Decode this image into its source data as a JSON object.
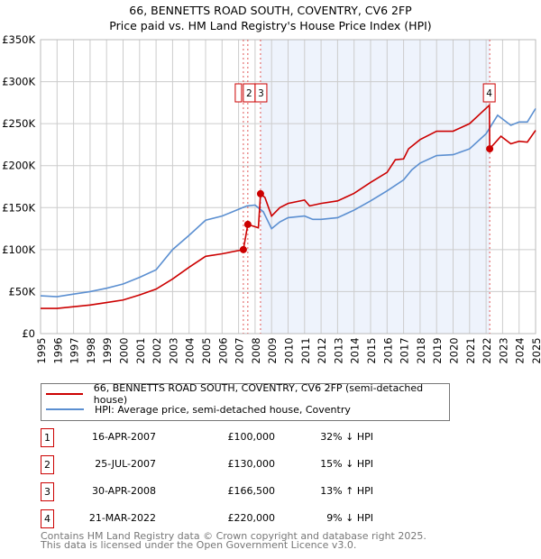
{
  "chart_data": {
    "type": "line",
    "title": "66, BENNETTS ROAD SOUTH, COVENTRY, CV6 2FP",
    "subtitle": "Price paid vs. HM Land Registry's House Price Index (HPI)",
    "xlim": [
      1995,
      2025
    ],
    "ylim": [
      0,
      350000
    ],
    "y_ticks": [
      {
        "v": 0,
        "l": "£0"
      },
      {
        "v": 50000,
        "l": "£50K"
      },
      {
        "v": 100000,
        "l": "£100K"
      },
      {
        "v": 150000,
        "l": "£150K"
      },
      {
        "v": 200000,
        "l": "£200K"
      },
      {
        "v": 250000,
        "l": "£250K"
      },
      {
        "v": 300000,
        "l": "£300K"
      },
      {
        "v": 350000,
        "l": "£350K"
      }
    ],
    "x_ticks": [
      "1995",
      "1996",
      "1997",
      "1998",
      "1999",
      "2000",
      "2001",
      "2002",
      "2003",
      "2004",
      "2005",
      "2006",
      "2007",
      "2008",
      "2009",
      "2010",
      "2011",
      "2012",
      "2013",
      "2014",
      "2015",
      "2016",
      "2017",
      "2018",
      "2019",
      "2020",
      "2021",
      "2022",
      "2023",
      "2024",
      "2025"
    ],
    "shaded_range": [
      2008.33,
      2022.22
    ],
    "series": [
      {
        "name": "66, BENNETTS ROAD SOUTH, COVENTRY, CV6 2FP (semi-detached house)",
        "color": "#cc0000",
        "x": [
          1995,
          1996,
          1997,
          1998,
          1999,
          2000,
          2001,
          2002,
          2003,
          2004,
          2005,
          2006,
          2007.29,
          2007.56,
          2008.2,
          2008.33,
          2008.6,
          2009,
          2009.5,
          2010,
          2011,
          2011.3,
          2012,
          2013,
          2014,
          2015,
          2016,
          2016.5,
          2017,
          2017.3,
          2018,
          2019,
          2020,
          2021,
          2022.2,
          2022.22,
          2022.9,
          2023.5,
          2024,
          2024.5,
          2025
        ],
        "y": [
          30000,
          30000,
          32000,
          34000,
          37000,
          40000,
          46000,
          53000,
          65000,
          79000,
          92000,
          95000,
          100000,
          130000,
          126000,
          166500,
          162000,
          140000,
          150000,
          155000,
          159000,
          152000,
          155000,
          158000,
          167000,
          180000,
          192000,
          207000,
          208000,
          220000,
          231000,
          241000,
          241000,
          250000,
          272000,
          220000,
          235000,
          226000,
          229000,
          228000,
          242000
        ]
      },
      {
        "name": "HPI: Average price, semi-detached house, Coventry",
        "color": "#5b8fd1",
        "x": [
          1995,
          1996,
          1997,
          1998,
          1999,
          2000,
          2001,
          2002,
          2003,
          2004,
          2005,
          2006,
          2007,
          2007.5,
          2008,
          2008.5,
          2009,
          2009.5,
          2010,
          2011,
          2011.5,
          2012,
          2013,
          2014,
          2015,
          2016,
          2017,
          2017.5,
          2018,
          2019,
          2020,
          2021,
          2022,
          2022.7,
          2023.5,
          2024,
          2024.5,
          2025
        ],
        "y": [
          45000,
          44000,
          47000,
          50000,
          54000,
          59000,
          67000,
          76000,
          100000,
          117000,
          135000,
          140000,
          148000,
          152000,
          153000,
          145000,
          125000,
          133000,
          138000,
          140000,
          136000,
          136000,
          138000,
          147000,
          158000,
          170000,
          183000,
          195000,
          203000,
          212000,
          213000,
          220000,
          238000,
          260000,
          248000,
          252000,
          252000,
          268000
        ]
      }
    ],
    "transactions": [
      {
        "n": "1",
        "date": "16-APR-2007",
        "x": 2007.29,
        "price": "£100,000",
        "value": 100000,
        "hpi": "32% ↓ HPI"
      },
      {
        "n": "2",
        "date": "25-JUL-2007",
        "x": 2007.56,
        "price": "£130,000",
        "value": 130000,
        "hpi": "15% ↓ HPI"
      },
      {
        "n": "3",
        "date": "30-APR-2008",
        "x": 2008.33,
        "price": "£166,500",
        "value": 166500,
        "hpi": "13% ↑ HPI"
      },
      {
        "n": "4",
        "date": "21-MAR-2022",
        "x": 2022.22,
        "price": "£220,000",
        "value": 220000,
        "hpi": "9% ↓ HPI"
      }
    ]
  },
  "footer": {
    "line1": "Contains HM Land Registry data © Crown copyright and database right 2025.",
    "line2": "This data is licensed under the Open Government Licence v3.0."
  }
}
